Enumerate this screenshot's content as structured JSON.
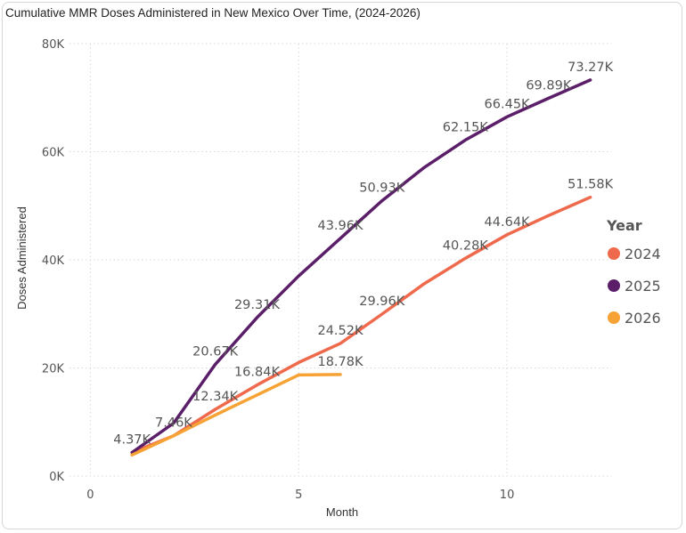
{
  "chart_data": {
    "type": "line",
    "title": "Cumulative MMR Doses Administered in New Mexico Over Time, (2024-2026)",
    "xlabel": "Month",
    "ylabel": "Doses Administered",
    "xlim": [
      -0.5,
      12.5
    ],
    "ylim": [
      0,
      80000
    ],
    "xticks": [
      0,
      5,
      10
    ],
    "xtick_labels": [
      "0",
      "5",
      "10"
    ],
    "yticks": [
      0,
      20000,
      40000,
      60000,
      80000
    ],
    "ytick_labels": [
      "0K",
      "20K",
      "40K",
      "60K",
      "80K"
    ],
    "grid": true,
    "legend": {
      "title": "Year",
      "position": "right"
    },
    "series": [
      {
        "name": "2024",
        "color": "#ef6a4c",
        "x": [
          1,
          2,
          3,
          4,
          5,
          6,
          7,
          8,
          9,
          10,
          11,
          12
        ],
        "values": [
          4370,
          7460,
          12340,
          16840,
          21000,
          24520,
          29960,
          35500,
          40280,
          44640,
          48200,
          51580
        ],
        "labels": [
          "",
          "",
          "12.34K",
          "16.84K",
          "",
          "24.52K",
          "29.96K",
          "",
          "40.28K",
          "44.64K",
          "",
          "51.58K"
        ]
      },
      {
        "name": "2025",
        "color": "#5b1f69",
        "x": [
          1,
          2,
          3,
          4,
          5,
          6,
          7,
          8,
          9,
          10,
          11,
          12
        ],
        "values": [
          4370,
          9800,
          20670,
          29310,
          37000,
          43960,
          50930,
          57000,
          62150,
          66450,
          69890,
          73270
        ],
        "labels": [
          "4.37K",
          "",
          "20.67K",
          "29.31K",
          "",
          "43.96K",
          "50.93K",
          "",
          "62.15K",
          "66.45K",
          "69.89K",
          "73.27K"
        ]
      },
      {
        "name": "2026",
        "color": "#f7a234",
        "x": [
          1,
          2,
          3,
          4,
          5,
          6
        ],
        "values": [
          3900,
          7460,
          11300,
          15000,
          18700,
          18780
        ],
        "labels": [
          "",
          "7.46K",
          "",
          "",
          "",
          "18.78K"
        ]
      }
    ]
  }
}
